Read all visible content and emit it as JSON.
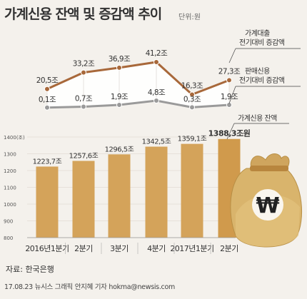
{
  "title": "가계신용 잔액 및 증감액 추이",
  "unit": "단위:원",
  "source": "자료: 한국은행",
  "credit": "17.08.23 뉴시스 그래픽 안지혜 기자 hokma@newsis.com",
  "colors": {
    "background": "#f4f1ec",
    "bar": "#d4a35a",
    "bar_last": "#d09a4c",
    "loan_line": "#a8683a",
    "sales_line": "#9a9a9a",
    "area": "#ffffff",
    "bag": "#d9b46c"
  },
  "chart_data": [
    {
      "type": "line",
      "categories": [
        "2016년1분기",
        "2분기",
        "3분기",
        "4분기",
        "2017년1분기",
        "2분기"
      ],
      "series": [
        {
          "name": "가계대출 전기대비 증감액",
          "values": [
            20.5,
            33.2,
            36.9,
            41.2,
            16.3,
            27.3
          ],
          "labels": [
            "20,5조",
            "33,2조",
            "36,9조",
            "41,2조",
            "16,3조",
            "27,3조"
          ]
        },
        {
          "name": "판매신용 전기대비 증감액",
          "values": [
            0.1,
            0.7,
            1.9,
            4.8,
            0.3,
            1.9
          ],
          "labels": [
            "0,1조",
            "0,7조",
            "1,9조",
            "4,8조",
            "0,3조",
            "1,9조"
          ]
        }
      ]
    },
    {
      "type": "bar",
      "categories": [
        "2016년1분기",
        "2분기",
        "3분기",
        "4분기",
        "2017년1분기",
        "2분기"
      ],
      "series": [
        {
          "name": "가계신용 잔액",
          "values": [
            1223.7,
            1257.6,
            1296.5,
            1342.5,
            1359.1,
            1388.3
          ],
          "labels": [
            "1223,7조",
            "1257,6조",
            "1296,5조",
            "1342,5조",
            "1359,1조",
            "1388,3조원"
          ]
        }
      ],
      "ylim": [
        800,
        1400
      ],
      "yticks": [
        "1400(조)",
        "1300",
        "1200",
        "1100",
        "1000",
        "900",
        "800"
      ]
    }
  ]
}
